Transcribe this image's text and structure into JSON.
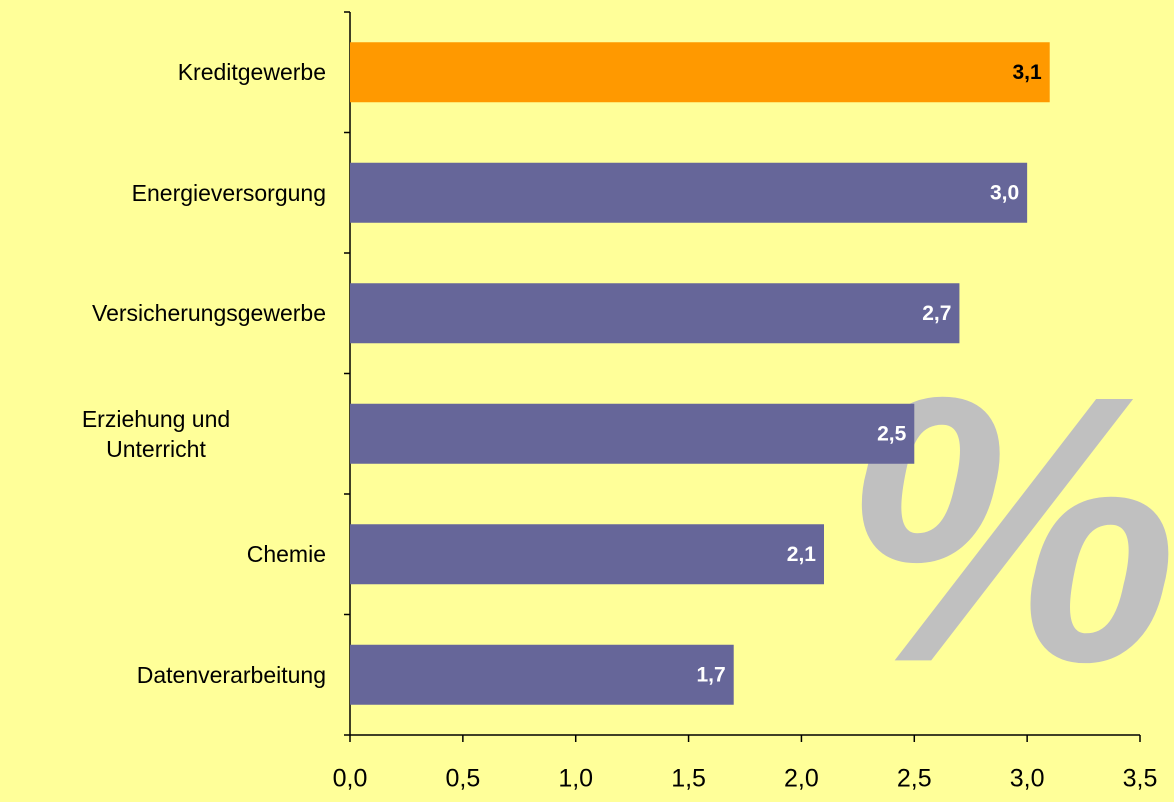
{
  "chart_data": {
    "type": "bar",
    "orientation": "horizontal",
    "annotation": "%",
    "categories": [
      "Kreditgewerbe",
      "Energieversorgung",
      "Versicherungsgewerbe",
      "Erziehung und\nUnterricht",
      "Chemie",
      "Datenverarbeitung"
    ],
    "values": [
      3.1,
      3.0,
      2.7,
      2.5,
      2.1,
      1.7
    ],
    "value_labels": [
      "3,1",
      "3,0",
      "2,7",
      "2,5",
      "2,1",
      "1,7"
    ],
    "colors": [
      "#ff9900",
      "#666699",
      "#666699",
      "#666699",
      "#666699",
      "#666699"
    ],
    "value_label_colors": [
      "#000000",
      "#ffffff",
      "#ffffff",
      "#ffffff",
      "#ffffff",
      "#ffffff"
    ],
    "xlim": [
      0,
      3.5
    ],
    "xticks": [
      {
        "value": 0,
        "label": "0,0"
      },
      {
        "value": 0.5,
        "label": "0,5"
      },
      {
        "value": 1,
        "label": "1,0"
      },
      {
        "value": 1.5,
        "label": "1,5"
      },
      {
        "value": 2,
        "label": "2,0"
      },
      {
        "value": 2.5,
        "label": "2,5"
      },
      {
        "value": 3,
        "label": "3,0"
      },
      {
        "value": 3.5,
        "label": "3,5"
      }
    ],
    "grid": false
  }
}
